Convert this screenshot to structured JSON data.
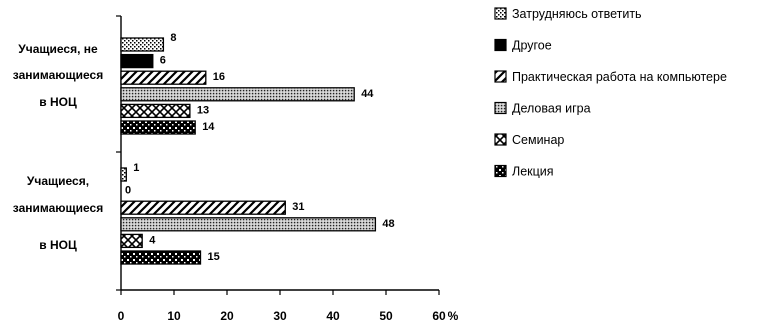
{
  "chart_data": {
    "type": "bar",
    "orientation": "horizontal",
    "title": "",
    "xlabel": "%",
    "ylabel": "",
    "xlim": [
      0,
      60
    ],
    "xticks": [
      0,
      10,
      20,
      30,
      40,
      50,
      60
    ],
    "grid": false,
    "legend_position": "right",
    "groups": [
      {
        "name_lines": [
          "Учащиеся, не",
          "занимающиеся",
          "в НОЦ"
        ]
      },
      {
        "name_lines": [
          "Учащиеся,",
          "занимающиеся",
          "в НОЦ"
        ]
      }
    ],
    "series": [
      {
        "name": "Затрудняюсь ответить",
        "pattern": "dots-light",
        "values": [
          8,
          1
        ]
      },
      {
        "name": "Другое",
        "pattern": "solid",
        "values": [
          6,
          0
        ]
      },
      {
        "name": "Практическая работа на компьютере",
        "pattern": "diagonal",
        "values": [
          16,
          31
        ]
      },
      {
        "name": "Деловая игра",
        "pattern": "dots-dense",
        "values": [
          44,
          48
        ]
      },
      {
        "name": "Семинар",
        "pattern": "crosshatch",
        "values": [
          13,
          4
        ]
      },
      {
        "name": "Лекция",
        "pattern": "checker",
        "values": [
          14,
          15
        ]
      }
    ]
  }
}
